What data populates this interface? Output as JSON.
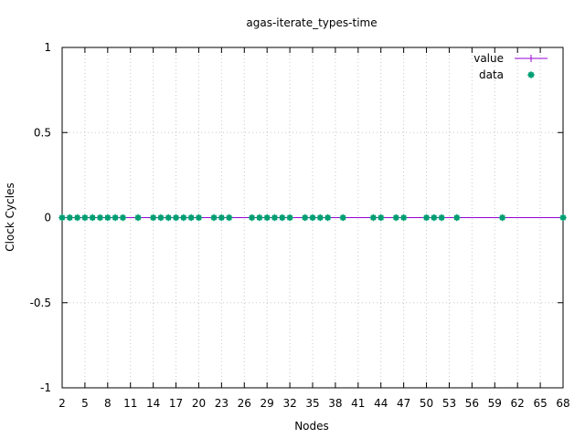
{
  "chart_data": {
    "type": "scatter",
    "title": "agas-iterate_types-time",
    "xlabel": "Nodes",
    "ylabel": "Clock Cycles",
    "xlim": [
      2,
      68
    ],
    "ylim": [
      -1,
      1
    ],
    "grid": true,
    "legend_position": "top-right",
    "x_ticks": [
      2,
      5,
      8,
      11,
      14,
      17,
      20,
      23,
      26,
      29,
      32,
      35,
      38,
      41,
      44,
      47,
      50,
      53,
      56,
      59,
      62,
      65,
      68
    ],
    "y_ticks": [
      -1,
      -0.5,
      0,
      0.5,
      1
    ],
    "x_tick_labels": [
      "2",
      "5",
      "8",
      "11",
      "14",
      "17",
      "20",
      "23",
      "26",
      "29",
      "32",
      "35",
      "38",
      "41",
      "44",
      "47",
      "50",
      "53",
      "56",
      "59",
      "62",
      "65",
      "68"
    ],
    "y_tick_labels": [
      "-1",
      "-0.5",
      "0",
      "0.5",
      "1"
    ],
    "series": [
      {
        "name": "value",
        "style": "line",
        "color": "#9400d3",
        "x": [
          2,
          68
        ],
        "y": [
          0,
          0
        ]
      },
      {
        "name": "data",
        "style": "points",
        "color": "#009e73",
        "x": [
          2,
          3,
          4,
          5,
          6,
          7,
          8,
          9,
          10,
          12,
          14,
          15,
          16,
          17,
          18,
          19,
          20,
          22,
          23,
          24,
          27,
          28,
          29,
          30,
          31,
          32,
          34,
          35,
          36,
          37,
          39,
          43,
          44,
          46,
          47,
          50,
          51,
          52,
          54,
          60,
          68
        ],
        "y": [
          0,
          0,
          0,
          0,
          0,
          0,
          0,
          0,
          0,
          0,
          0,
          0,
          0,
          0,
          0,
          0,
          0,
          0,
          0,
          0,
          0,
          0,
          0,
          0,
          0,
          0,
          0,
          0,
          0,
          0,
          0,
          0,
          0,
          0,
          0,
          0,
          0,
          0,
          0,
          0,
          0
        ]
      }
    ]
  }
}
